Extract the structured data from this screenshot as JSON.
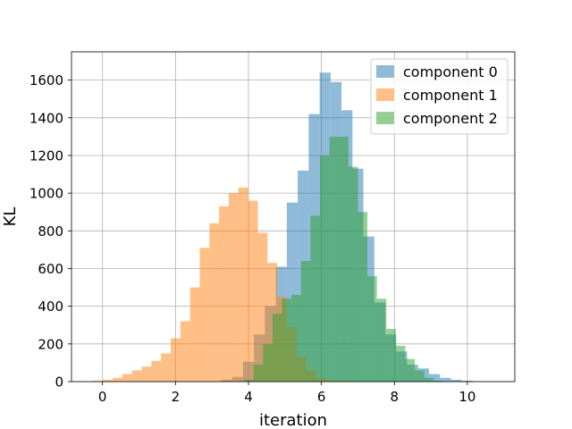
{
  "chart_data": {
    "type": "histogram",
    "xlabel": "iteration",
    "ylabel": "KL",
    "xlim": [
      -0.85,
      11.3
    ],
    "ylim": [
      0,
      1750
    ],
    "x_ticks": [
      0,
      2,
      4,
      6,
      8,
      10
    ],
    "y_ticks": [
      0,
      200,
      400,
      600,
      800,
      1000,
      1200,
      1400,
      1600
    ],
    "grid": true,
    "legend_position": "top-right",
    "alpha": 0.5,
    "series": [
      {
        "name": "component 0",
        "color": "#1f77b4",
        "bin_width": 0.3,
        "bin_start": 3.25,
        "counts": [
          10,
          25,
          105,
          250,
          400,
          610,
          950,
          1120,
          1420,
          1640,
          1590,
          1440,
          1130,
          770,
          420,
          250,
          160,
          90,
          70,
          40,
          20,
          10,
          5
        ]
      },
      {
        "name": "component 1",
        "color": "#ff7f0e",
        "bin_width": 0.265,
        "bin_start": -0.25,
        "counts": [
          5,
          10,
          20,
          40,
          60,
          80,
          110,
          150,
          230,
          320,
          500,
          710,
          840,
          930,
          1000,
          1030,
          960,
          790,
          630,
          450,
          290,
          130,
          60,
          20,
          8,
          5,
          3
        ]
      },
      {
        "name": "component 2",
        "color": "#2ca02c",
        "bin_width": 0.26,
        "bin_start": 3.88,
        "counts": [
          10,
          90,
          200,
          360,
          440,
          460,
          640,
          880,
          1200,
          1300,
          1300,
          1140,
          900,
          560,
          440,
          280,
          190,
          120,
          60,
          20,
          5
        ]
      }
    ]
  }
}
